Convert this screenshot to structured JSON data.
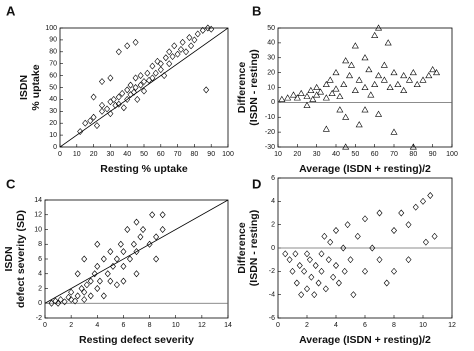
{
  "chart_data": [
    {
      "type": "scatter",
      "panel_label": "A",
      "ylabel": [
        "ISDN",
        "% uptake"
      ],
      "xlabel": "Resting % uptake",
      "marker": "diamond",
      "identity_line": true,
      "zero_line": false,
      "xlim": [
        0,
        100
      ],
      "ylim": [
        0,
        100
      ],
      "xticks": [
        0,
        10,
        20,
        30,
        40,
        50,
        60,
        70,
        80,
        90,
        100
      ],
      "yticks": [
        0,
        10,
        20,
        30,
        40,
        50,
        60,
        70,
        80,
        90,
        100
      ],
      "x": [
        12,
        15,
        18,
        20,
        22,
        25,
        25,
        28,
        30,
        30,
        32,
        33,
        35,
        35,
        37,
        38,
        40,
        40,
        42,
        42,
        44,
        45,
        45,
        46,
        48,
        48,
        50,
        50,
        52,
        53,
        55,
        55,
        57,
        58,
        60,
        60,
        62,
        63,
        65,
        65,
        67,
        68,
        70,
        72,
        73,
        75,
        77,
        78,
        80,
        82,
        85,
        88,
        90,
        87,
        30,
        35,
        40,
        45,
        20,
        25
      ],
      "values": [
        13,
        20,
        22,
        25,
        18,
        30,
        35,
        32,
        28,
        38,
        40,
        35,
        36,
        42,
        45,
        33,
        40,
        48,
        44,
        52,
        46,
        50,
        58,
        40,
        52,
        60,
        55,
        47,
        62,
        56,
        58,
        68,
        62,
        72,
        65,
        70,
        60,
        75,
        70,
        80,
        76,
        85,
        78,
        82,
        88,
        80,
        92,
        85,
        90,
        95,
        98,
        100,
        99,
        48,
        58,
        80,
        85,
        88,
        42,
        55
      ]
    },
    {
      "type": "scatter",
      "panel_label": "B",
      "ylabel": [
        "Difference",
        "(ISDN - resting)"
      ],
      "xlabel": "Average (ISDN + resting)/2",
      "marker": "triangle",
      "identity_line": false,
      "zero_line": true,
      "xlim": [
        10,
        100
      ],
      "ylim": [
        -30,
        50
      ],
      "xticks": [
        10,
        20,
        30,
        40,
        50,
        60,
        70,
        80,
        90,
        100
      ],
      "yticks": [
        -30,
        -20,
        -10,
        0,
        10,
        20,
        30,
        40,
        50
      ],
      "x": [
        12,
        15,
        18,
        20,
        22,
        25,
        27,
        28,
        30,
        30,
        32,
        35,
        35,
        37,
        38,
        40,
        40,
        42,
        42,
        44,
        45,
        45,
        47,
        48,
        50,
        50,
        52,
        52,
        55,
        55,
        57,
        58,
        60,
        60,
        62,
        62,
        65,
        65,
        67,
        68,
        70,
        70,
        72,
        75,
        75,
        78,
        80,
        82,
        85,
        88,
        90,
        92,
        45,
        80,
        35,
        55,
        25,
        62
      ],
      "values": [
        2,
        3,
        5,
        3,
        6,
        4,
        8,
        2,
        5,
        10,
        7,
        3,
        12,
        15,
        6,
        9,
        20,
        4,
        -5,
        12,
        28,
        -10,
        18,
        25,
        8,
        38,
        15,
        -15,
        10,
        30,
        22,
        5,
        12,
        45,
        18,
        -8,
        15,
        25,
        40,
        10,
        20,
        -20,
        12,
        18,
        8,
        15,
        20,
        12,
        15,
        18,
        22,
        20,
        -30,
        -30,
        -18,
        -5,
        -2,
        50
      ]
    },
    {
      "type": "scatter",
      "panel_label": "C",
      "ylabel": [
        "ISDN",
        "defect severity (SD)"
      ],
      "xlabel": "Resting defect severity",
      "marker": "diamond",
      "identity_line": true,
      "zero_line": true,
      "xlim": [
        0,
        14
      ],
      "ylim": [
        -2,
        14
      ],
      "xticks": [
        0,
        2,
        4,
        6,
        8,
        10,
        12,
        14
      ],
      "yticks": [
        -2,
        0,
        2,
        4,
        6,
        8,
        10,
        12,
        14
      ],
      "x": [
        0.5,
        0.8,
        1,
        1.2,
        1.5,
        1.8,
        2,
        2,
        2.3,
        2.5,
        2.8,
        3,
        3,
        3.2,
        3.5,
        3.5,
        3.8,
        4,
        4,
        4.2,
        4.5,
        4.5,
        4.8,
        5,
        5,
        5.2,
        5.5,
        5.5,
        5.8,
        6,
        6,
        6.3,
        6.5,
        6.8,
        7,
        7,
        7.3,
        7.5,
        8,
        8.2,
        8.5,
        9,
        9,
        3,
        4,
        2.5,
        6,
        7,
        8.5
      ],
      "values": [
        0,
        0.3,
        0,
        0.5,
        0.2,
        0.8,
        0.5,
        1.5,
        0.3,
        1,
        2,
        0.5,
        1.5,
        2.5,
        1,
        3,
        4,
        2,
        5,
        3,
        6,
        1,
        4,
        3,
        7,
        5,
        6,
        2.5,
        8,
        5,
        7,
        10,
        6,
        8,
        7,
        11,
        9,
        10,
        8,
        12,
        9,
        10,
        12,
        6,
        8,
        4,
        3,
        4,
        6
      ]
    },
    {
      "type": "scatter",
      "panel_label": "D",
      "ylabel": [
        "Difference",
        "(ISDN - resting)"
      ],
      "xlabel": "Average (ISDN + resting)/2",
      "marker": "diamond",
      "identity_line": false,
      "zero_line": true,
      "xlim": [
        0,
        12
      ],
      "ylim": [
        -6,
        6
      ],
      "xticks": [
        0,
        2,
        4,
        6,
        8,
        10,
        12
      ],
      "yticks": [
        -6,
        -4,
        -2,
        0,
        2,
        4,
        6
      ],
      "x": [
        0.5,
        0.8,
        1,
        1.2,
        1.3,
        1.5,
        1.6,
        1.8,
        2,
        2,
        2.2,
        2.3,
        2.5,
        2.6,
        2.8,
        3,
        3,
        3.2,
        3.3,
        3.5,
        3.6,
        3.8,
        4,
        4,
        4.2,
        4.5,
        4.6,
        4.8,
        5,
        5.2,
        5.5,
        6,
        6,
        6.5,
        7,
        7,
        7.5,
        8,
        8,
        8.5,
        9,
        9,
        9.5,
        10,
        10.2,
        10.5,
        10.8
      ],
      "values": [
        -0.5,
        -1,
        -2,
        -0.5,
        -3,
        -1.5,
        -4,
        -2,
        -0.5,
        -3.5,
        -1,
        -2.5,
        -4,
        -1.5,
        -3,
        -0.5,
        -2,
        1,
        -3.5,
        -1,
        0.5,
        -2.5,
        -1.5,
        1.5,
        -3,
        0,
        -2,
        2,
        -1,
        -4,
        1,
        -2,
        2.5,
        0,
        3,
        -1,
        -3,
        1.5,
        -2,
        3,
        -1,
        2,
        3.5,
        4,
        0.5,
        4.5,
        1
      ]
    }
  ]
}
